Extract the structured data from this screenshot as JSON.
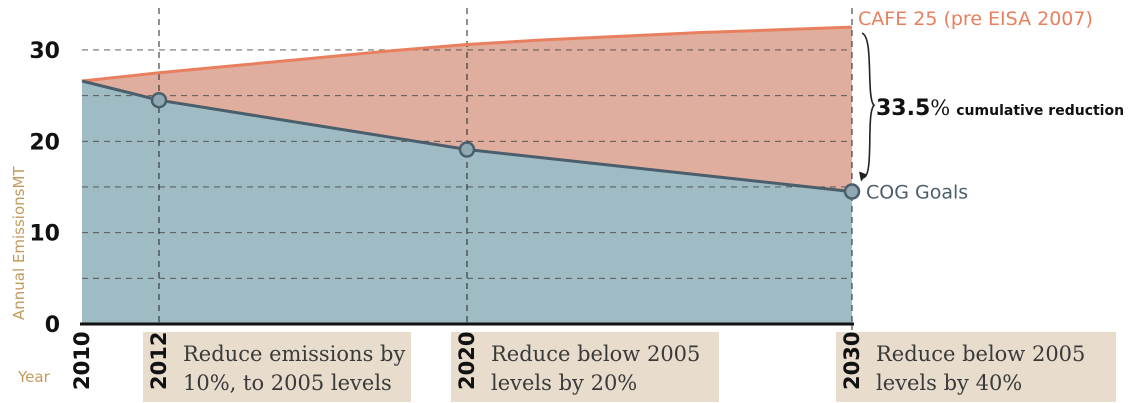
{
  "chart_data": {
    "type": "area",
    "xlabel": "Year",
    "ylabel": "Annual EmissionsMT",
    "ylim": [
      0,
      33.5
    ],
    "yticks": [
      0,
      10,
      20,
      30
    ],
    "xlim": [
      2010,
      2030
    ],
    "xticks": [
      2010,
      2012,
      2020,
      2030
    ],
    "grid": "dashed",
    "series": [
      {
        "name": "CAFE 25 (pre EISA 2007)",
        "color": "#e8805f",
        "fill": "#dfae9e",
        "x": [
          2010,
          2012,
          2014,
          2016,
          2018,
          2020,
          2022,
          2024,
          2026,
          2028,
          2030
        ],
        "values": [
          26.6,
          27.5,
          28.3,
          29.1,
          29.9,
          30.6,
          31.1,
          31.5,
          31.9,
          32.2,
          32.5
        ]
      },
      {
        "name": "COG Goals",
        "color": "#4a5e6b",
        "fill": "#9fbcc4",
        "x": [
          2010,
          2012,
          2020,
          2030
        ],
        "values": [
          26.6,
          24.5,
          19.1,
          14.5
        ],
        "markers": [
          2012,
          2020,
          2030
        ]
      }
    ],
    "annotation": {
      "value": "33.5",
      "unit": "%",
      "text": "cumulative reduction"
    },
    "goal_notes": [
      {
        "year": 2012,
        "line1": "Reduce emissions by",
        "line2": "10%, to 2005 levels"
      },
      {
        "year": 2020,
        "line1": "Reduce  below 2005",
        "line2": "levels  by 20%"
      },
      {
        "year": 2030,
        "line1": "Reduce  below 2005",
        "line2": "levels  by 40%"
      }
    ],
    "colors": {
      "axis_text": "#c49a5c",
      "box": "#e8dccd",
      "grid": "#4a4a4a"
    }
  }
}
